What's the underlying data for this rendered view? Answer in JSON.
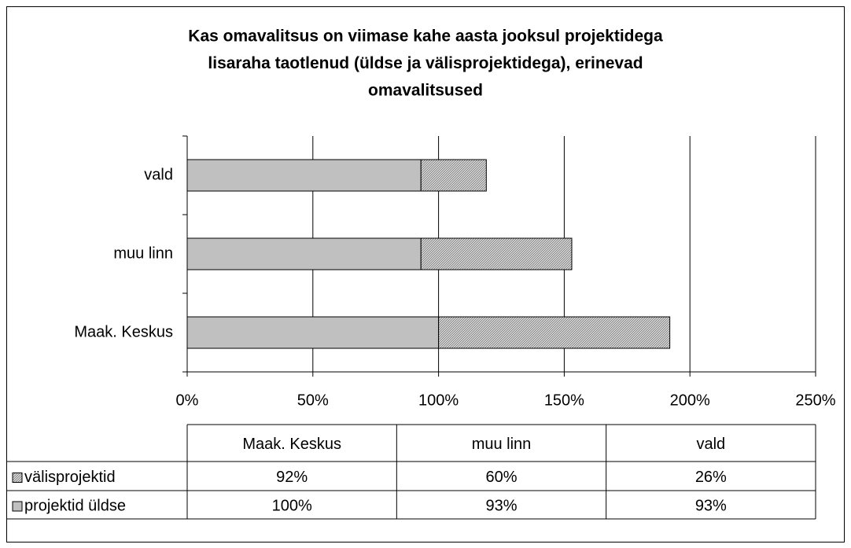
{
  "chart_data": {
    "type": "bar",
    "orientation": "horizontal",
    "stacked": true,
    "title": [
      "Kas omavalitsus on viimase kahe aasta jooksul projektidega",
      "lisaraha taotlenud (üldse ja välisprojektidega), erinevad",
      "omavalitsused"
    ],
    "categories": [
      "Maak. Keskus",
      "muu linn",
      "vald"
    ],
    "series": [
      {
        "name": "välisprojektid",
        "color": "#808080",
        "values": [
          92,
          60,
          26
        ],
        "value_labels": [
          "92%",
          "60%",
          "26%"
        ]
      },
      {
        "name": "projektid üldse",
        "color": "#c0c0c0",
        "values": [
          100,
          93,
          93
        ],
        "value_labels": [
          "100%",
          "93%",
          "93%"
        ]
      }
    ],
    "xlim": [
      0,
      250
    ],
    "xticks": [
      {
        "value": 0,
        "label": "0%"
      },
      {
        "value": 50,
        "label": "50%"
      },
      {
        "value": 100,
        "label": "100%"
      },
      {
        "value": 150,
        "label": "150%"
      },
      {
        "value": 200,
        "label": "200%"
      },
      {
        "value": 250,
        "label": "250%"
      }
    ],
    "grid": true,
    "data_table": true
  }
}
